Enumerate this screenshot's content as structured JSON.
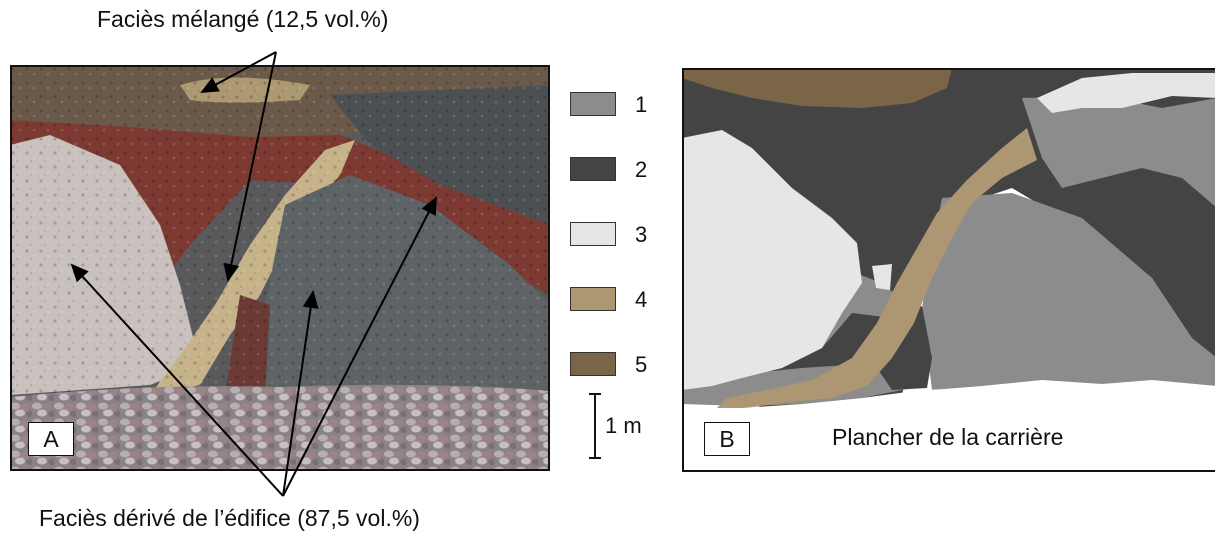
{
  "captions": {
    "top": "Faciès mélangé (12,5 vol.%)",
    "bottom": "Faciès dérivé de l’édifice (87,5 vol.%)"
  },
  "panel_a": {
    "tag": "A"
  },
  "panel_b": {
    "tag": "B",
    "floor_label": "Plancher de la carrière"
  },
  "legend": [
    {
      "number": "1",
      "color": "#8c8c8c"
    },
    {
      "number": "2",
      "color": "#444444"
    },
    {
      "number": "3",
      "color": "#e6e6e6"
    },
    {
      "number": "4",
      "color": "#ad9672"
    },
    {
      "number": "5",
      "color": "#7a6647"
    }
  ],
  "scale": {
    "label": "1 m"
  }
}
